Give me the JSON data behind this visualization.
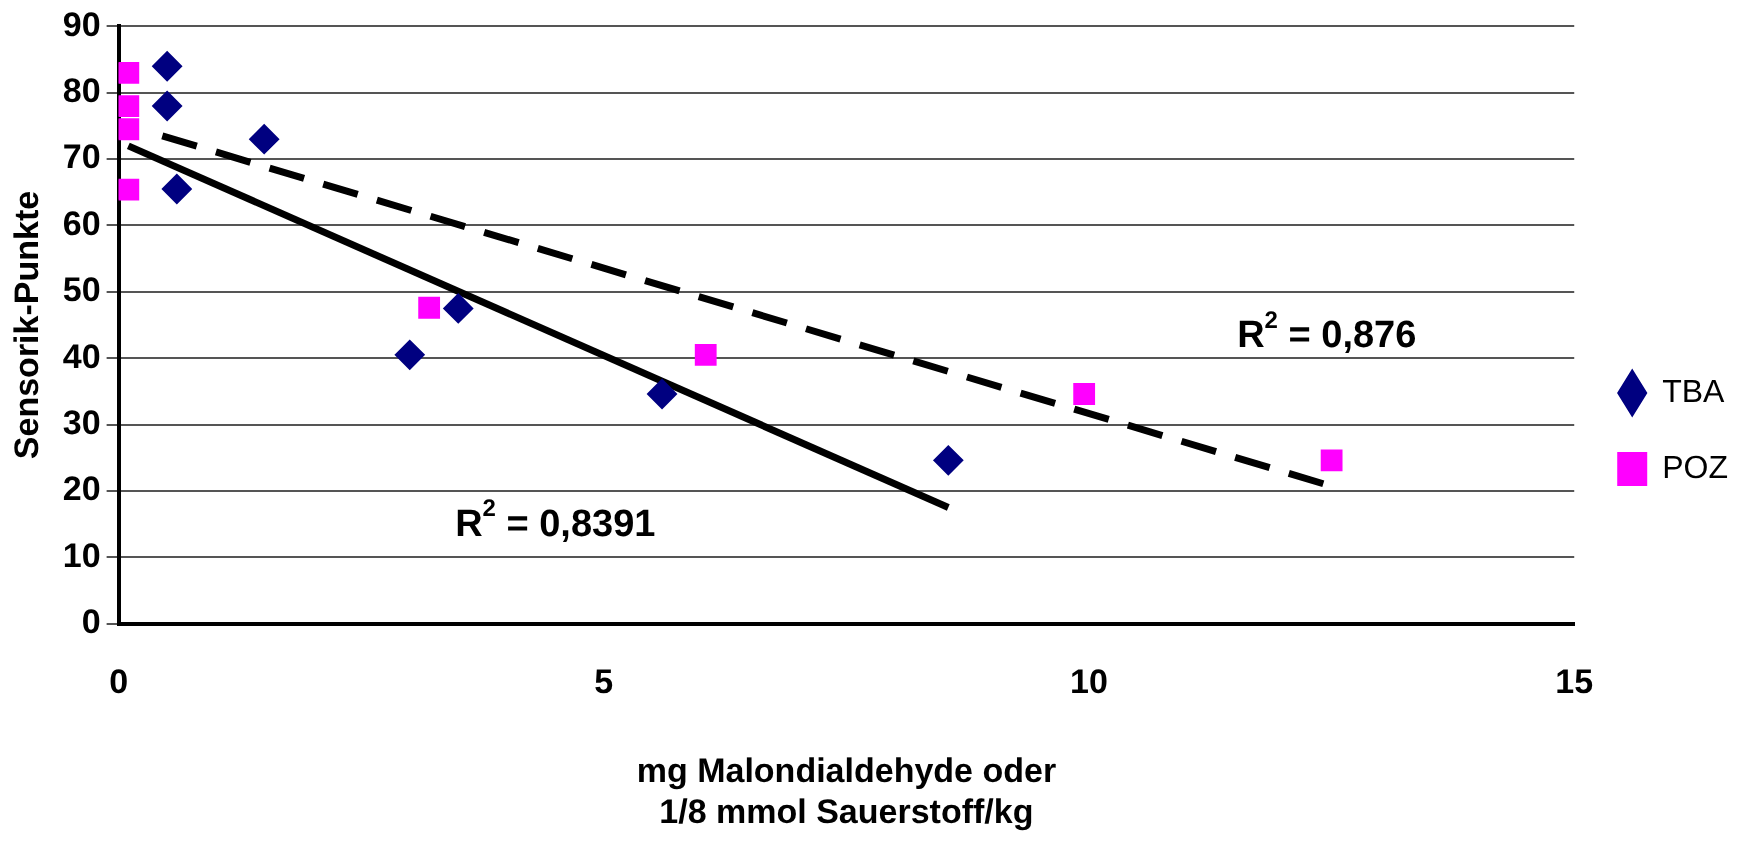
{
  "chart_data": {
    "type": "scatter",
    "xlabel": "mg Malondialdehyde oder\n1/8 mmol Sauerstoff/kg",
    "ylabel": "Sensorik-Punkte",
    "xlim": [
      0,
      15
    ],
    "xticks": [
      0,
      5,
      10,
      15
    ],
    "ylim": [
      0,
      90
    ],
    "yticks": [
      0,
      10,
      20,
      30,
      40,
      50,
      60,
      70,
      80,
      90
    ],
    "grid": "y",
    "legend": "right",
    "series": [
      {
        "name": "TBA",
        "color": "#000080",
        "marker": "diamond",
        "x": [
          0.5,
          0.5,
          0.6,
          1.5,
          3.0,
          3.5,
          5.6,
          8.55
        ],
        "values": [
          84,
          78,
          65.5,
          73,
          40.5,
          47.5,
          34.6,
          24.6
        ]
      },
      {
        "name": "POZ",
        "color": "#ff00ff",
        "marker": "square",
        "x": [
          0.1,
          0.1,
          0.1,
          0.1,
          3.2,
          6.05,
          9.95,
          12.5
        ],
        "values": [
          83,
          78,
          74.5,
          65.4,
          47.6,
          40.5,
          34.6,
          24.6
        ]
      },
      {
        "type": "line",
        "color": "#000000",
        "line_style": "solid",
        "x": [
          0.1,
          8.55
        ],
        "values": [
          72,
          17.5
        ]
      },
      {
        "type": "line",
        "color": "#000000",
        "line_style": "dashed",
        "x": [
          0.45,
          12.5
        ],
        "values": [
          73.5,
          20.7
        ]
      }
    ],
    "annotations": [
      "R$^{2}$ = 0,8391",
      "R$^{2}$ = 0,876"
    ]
  }
}
